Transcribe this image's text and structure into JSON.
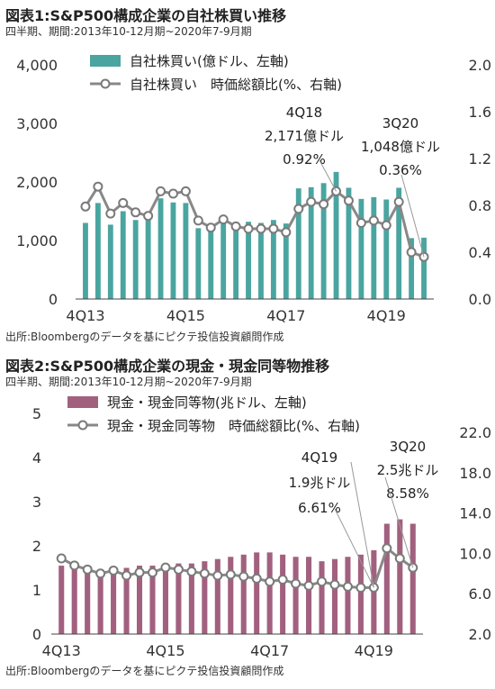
{
  "charts": [
    {
      "title": "図表1:S&P500構成企業の自社株買い推移",
      "subtitle": "四半期、期間:2013年10-12月期~2020年7-9月期",
      "source": "出所:Bloombergのデータを基にピクテ投信投資顧問作成",
      "legend": {
        "bar": "自社株買い(億ドル、左軸)",
        "line": "自社株買い　時価総額比(%、右軸)"
      },
      "annotations": [
        {
          "lines": [
            "4Q18",
            "2,171億ドル",
            "0.92%"
          ]
        },
        {
          "lines": [
            "3Q20",
            "1,048億ドル",
            "0.36%"
          ]
        }
      ]
    },
    {
      "title": "図表2:S&P500構成企業の現金・現金同等物推移",
      "subtitle": "四半期、期間:2013年10-12月期~2020年7-9月期",
      "source": "出所:Bloombergのデータを基にピクテ投信投資顧問作成",
      "legend": {
        "bar": "現金・現金同等物(兆ドル、左軸)",
        "line": "現金・現金同等物　時価総額比(%、右軸)"
      },
      "annotations": [
        {
          "lines": [
            "4Q19",
            "1.9兆ドル",
            "6.61%"
          ]
        },
        {
          "lines": [
            "3Q20",
            "2.5兆ドル",
            "8.58%"
          ]
        }
      ]
    }
  ],
  "chart_data": [
    {
      "type": "bar",
      "categories": [
        "4Q13",
        "1Q14",
        "2Q14",
        "3Q14",
        "4Q14",
        "1Q15",
        "2Q15",
        "3Q15",
        "4Q15",
        "1Q16",
        "2Q16",
        "3Q16",
        "4Q16",
        "1Q17",
        "2Q17",
        "3Q17",
        "4Q17",
        "1Q18",
        "2Q18",
        "3Q18",
        "4Q18",
        "1Q19",
        "2Q19",
        "3Q19",
        "4Q19",
        "1Q20",
        "2Q20",
        "3Q20"
      ],
      "x_tick_labels": [
        "4Q13",
        "4Q15",
        "4Q17",
        "4Q19"
      ],
      "x_tick_indices": [
        0,
        8,
        16,
        24
      ],
      "series": [
        {
          "name": "自社株買い(億ドル、左軸)",
          "axis": "left",
          "color": "#4aa5a0",
          "values": [
            1300,
            1640,
            1270,
            1500,
            1350,
            1450,
            1720,
            1650,
            1640,
            1210,
            1220,
            1290,
            1260,
            1320,
            1300,
            1350,
            1290,
            1890,
            1910,
            1980,
            2171,
            1900,
            1710,
            1740,
            1700,
            1900,
            1040,
            1048
          ]
        },
        {
          "name": "自社株買い　時価総額比(%、右軸)",
          "axis": "right",
          "type": "line",
          "color": "#888888",
          "values": [
            0.79,
            0.96,
            0.73,
            0.82,
            0.74,
            0.71,
            0.92,
            0.9,
            0.92,
            0.67,
            0.61,
            0.68,
            0.62,
            0.6,
            0.6,
            0.6,
            0.57,
            0.77,
            0.83,
            0.81,
            0.92,
            0.84,
            0.65,
            0.67,
            0.63,
            0.83,
            0.4,
            0.36
          ]
        }
      ],
      "yleft": {
        "min": 0,
        "max": 4000,
        "ticks": [
          0,
          1000,
          2000,
          3000,
          4000
        ],
        "labels": [
          "0",
          "1,000",
          "2,000",
          "3,000",
          "4,000"
        ]
      },
      "yright": {
        "min": 0,
        "max": 2.0,
        "ticks": [
          0,
          0.4,
          0.8,
          1.2,
          1.6,
          2.0
        ],
        "labels": [
          "0.0",
          "0.4",
          "0.8",
          "1.2",
          "1.6",
          "2.0"
        ]
      },
      "grid": false,
      "legend_position": "top-left"
    },
    {
      "type": "bar",
      "categories": [
        "4Q13",
        "1Q14",
        "2Q14",
        "3Q14",
        "4Q14",
        "1Q15",
        "2Q15",
        "3Q15",
        "4Q15",
        "1Q16",
        "2Q16",
        "3Q16",
        "4Q16",
        "1Q17",
        "2Q17",
        "3Q17",
        "4Q17",
        "1Q18",
        "2Q18",
        "3Q18",
        "4Q18",
        "1Q19",
        "2Q19",
        "3Q19",
        "4Q19",
        "1Q20",
        "2Q20",
        "3Q20"
      ],
      "x_tick_labels": [
        "4Q13",
        "4Q15",
        "4Q17",
        "4Q19"
      ],
      "x_tick_indices": [
        0,
        8,
        16,
        24
      ],
      "series": [
        {
          "name": "現金・現金同等物(兆ドル、左軸)",
          "axis": "left",
          "color": "#a2607f",
          "values": [
            1.55,
            1.5,
            1.5,
            1.45,
            1.5,
            1.5,
            1.55,
            1.55,
            1.6,
            1.6,
            1.6,
            1.65,
            1.7,
            1.75,
            1.8,
            1.85,
            1.85,
            1.8,
            1.75,
            1.75,
            1.65,
            1.7,
            1.75,
            1.8,
            1.9,
            2.5,
            2.6,
            2.5
          ]
        },
        {
          "name": "現金・現金同等物　時価総額比(%、右軸)",
          "axis": "right",
          "type": "line",
          "color": "#888888",
          "values": [
            9.5,
            8.8,
            8.4,
            8.0,
            8.3,
            7.8,
            8.1,
            8.1,
            8.6,
            8.4,
            8.2,
            8.0,
            7.8,
            7.9,
            7.7,
            7.5,
            7.2,
            7.4,
            7.0,
            6.8,
            7.2,
            6.9,
            6.7,
            6.6,
            6.61,
            10.5,
            9.5,
            8.58
          ]
        }
      ],
      "yleft": {
        "min": 0,
        "max": 5,
        "ticks": [
          0,
          1,
          2,
          3,
          4,
          5
        ],
        "labels": [
          "0",
          "1",
          "2",
          "3",
          "4",
          "5"
        ]
      },
      "yright": {
        "min": 2.0,
        "max": 22.0,
        "ticks": [
          2,
          6,
          10,
          14,
          18,
          22
        ],
        "labels": [
          "2.0",
          "6.0",
          "10.0",
          "14.0",
          "18.0",
          "22.0"
        ]
      },
      "grid": false,
      "legend_position": "top-left"
    }
  ]
}
